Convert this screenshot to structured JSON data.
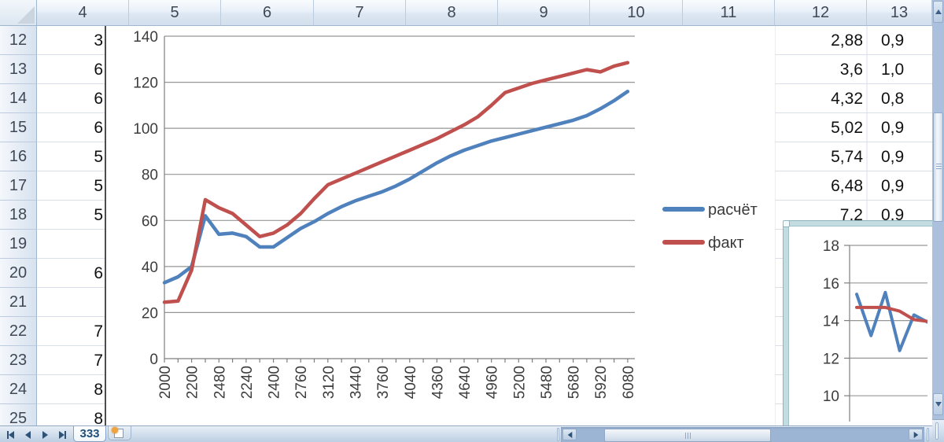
{
  "spreadsheet": {
    "columns": [
      "4",
      "5",
      "6",
      "7",
      "8",
      "9",
      "10",
      "11",
      "12",
      "13"
    ],
    "rows": [
      {
        "n": "12",
        "col4": "3",
        "col12": "2,88",
        "col13": "0,9"
      },
      {
        "n": "13",
        "col4": "6",
        "col12": "3,6",
        "col13": "1,0"
      },
      {
        "n": "14",
        "col4": "6",
        "col12": "4,32",
        "col13": "0,8"
      },
      {
        "n": "15",
        "col4": "6",
        "col12": "5,02",
        "col13": "0,9"
      },
      {
        "n": "16",
        "col4": "5",
        "col12": "5,74",
        "col13": "0,9"
      },
      {
        "n": "17",
        "col4": "5",
        "col12": "6,48",
        "col13": "0,9"
      },
      {
        "n": "18",
        "col4": "5",
        "col12": "7,2",
        "col13": "0,9"
      },
      {
        "n": "19",
        "col4": "",
        "col12": "",
        "col13": ""
      },
      {
        "n": "20",
        "col4": "6",
        "col12": "",
        "col13": ""
      },
      {
        "n": "21",
        "col4": "",
        "col12": "",
        "col13": ""
      },
      {
        "n": "22",
        "col4": "7",
        "col12": "",
        "col13": ""
      },
      {
        "n": "23",
        "col4": "7",
        "col12": "",
        "col13": ""
      },
      {
        "n": "24",
        "col4": "8",
        "col12": "",
        "col13": ""
      },
      {
        "n": "25",
        "col4": "8",
        "col12": "",
        "col13": ""
      }
    ]
  },
  "sheet_tabs": {
    "active": "333"
  },
  "colors": {
    "series_blue": "#4F81BD",
    "series_red": "#C0504D",
    "chart_grid": "#969696",
    "chart_axis": "#7F7F7F",
    "chart_text": "#3D3D3D"
  },
  "chart_data": [
    {
      "type": "line",
      "title": "",
      "xlabel": "",
      "ylabel": "",
      "ylim": [
        0,
        140
      ],
      "yticks": [
        "0",
        "20",
        "40",
        "60",
        "80",
        "100",
        "120",
        "140"
      ],
      "x_labels": [
        "2000",
        "2200",
        "2480",
        "2240",
        "2400",
        "2760",
        "3120",
        "3440",
        "3760",
        "4040",
        "4360",
        "4640",
        "4960",
        "5200",
        "5480",
        "5680",
        "5920",
        "6080"
      ],
      "points_per_label": 2,
      "grid": true,
      "legend_position": "right",
      "series": [
        {
          "name": "расчёт",
          "color": "#4F81BD",
          "values": [
            33,
            35.5,
            40,
            62,
            54,
            54.5,
            53,
            48.5,
            48.5,
            52.5,
            56.5,
            59.5,
            63,
            66,
            68.5,
            70.5,
            72.5,
            75,
            78,
            81.5,
            85,
            88,
            90.5,
            92.5,
            94.5,
            96,
            97.5,
            99,
            100.5,
            102,
            103.5,
            105.5,
            108.5,
            112,
            116
          ]
        },
        {
          "name": "факт",
          "color": "#C0504D",
          "values": [
            24.5,
            25,
            38.5,
            69,
            65.5,
            63,
            58,
            53,
            54.5,
            58,
            63,
            69.5,
            75.5,
            78,
            80.5,
            83,
            85.5,
            88,
            90.5,
            93,
            95.5,
            98.5,
            101.5,
            105,
            110,
            115.5,
            117.5,
            119.5,
            121,
            122.5,
            124,
            125.5,
            124.5,
            127,
            128.5
          ]
        }
      ]
    },
    {
      "type": "line",
      "title": "",
      "ylim": [
        8,
        18
      ],
      "yticks": [
        "18",
        "16",
        "14",
        "12",
        "10",
        "8"
      ],
      "grid": true,
      "clipped": "right and bottom edges hidden by scrollbars",
      "series": [
        {
          "name": "расчёт",
          "color": "#4F81BD",
          "values": [
            15.4,
            13.2,
            15.5,
            12.4,
            14.3,
            13.9
          ]
        },
        {
          "name": "факт",
          "color": "#C0504D",
          "values": [
            14.7,
            14.7,
            14.7,
            14.5,
            14.05,
            13.95
          ]
        }
      ]
    }
  ]
}
